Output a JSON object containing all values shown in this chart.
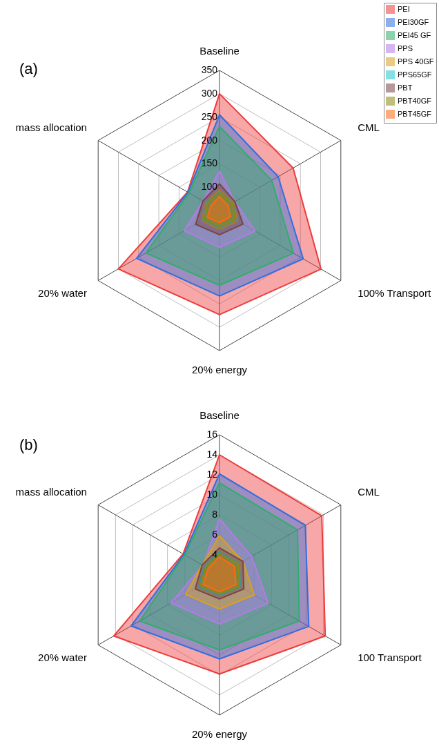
{
  "chart_data": [
    {
      "type": "radar",
      "title": "(a)",
      "categories": [
        "Baseline",
        "CML",
        "100% Transport",
        "20% energy",
        "20% water",
        "mass allocation"
      ],
      "ylim": [
        50,
        350
      ],
      "yticks": [
        100,
        150,
        200,
        250,
        300,
        350
      ],
      "grid": true,
      "legend": "top right",
      "series": [
        {
          "name": "PEI",
          "color": "#ee3b3b",
          "values": [
            300,
            232,
            301,
            273,
            300,
            129
          ]
        },
        {
          "name": "PEI30GF",
          "color": "#2f6fe0",
          "values": [
            255,
            195,
            257,
            233,
            255,
            128
          ]
        },
        {
          "name": "PEI45 GF",
          "color": "#2fae6a",
          "values": [
            230,
            179,
            233,
            210,
            232,
            125
          ]
        },
        {
          "name": "PPS",
          "color": "#b57ae8",
          "values": [
            134,
            88,
            138,
            129,
            137,
            91
          ]
        },
        {
          "name": "PPS 40GF",
          "color": "#d9a21c",
          "values": [
            94,
            85,
            95,
            90,
            94,
            84
          ]
        },
        {
          "name": "PPS65GF",
          "color": "#22c9c9",
          "values": [
            90,
            83,
            91,
            87,
            91,
            82
          ]
        },
        {
          "name": "PBT",
          "color": "#7a4545",
          "values": [
            107,
            88,
            108,
            102,
            109,
            91
          ]
        },
        {
          "name": "PBT40GF",
          "color": "#8b8b10",
          "values": [
            88,
            82,
            89,
            84,
            88,
            80
          ]
        },
        {
          "name": "PBT45GF",
          "color": "#ff6a10",
          "values": [
            80,
            71,
            77,
            76,
            80,
            71
          ]
        }
      ]
    },
    {
      "type": "radar",
      "title": "(b)",
      "categories": [
        "Baseline",
        "CML",
        "100 Transport",
        "20% energy",
        "20% water",
        "mass allocation"
      ],
      "ylim": [
        2,
        16
      ],
      "yticks": [
        4,
        6,
        8,
        10,
        12,
        14,
        16
      ],
      "grid": true,
      "series": [
        {
          "color": "#ee3b3b",
          "values": [
            14,
            13.8,
            14.2,
            11.9,
            14.2,
            6.2
          ]
        },
        {
          "color": "#2f6fe0",
          "values": [
            12.1,
            11.9,
            12.3,
            10.4,
            12.2,
            6.1
          ]
        },
        {
          "color": "#2fae6a",
          "values": [
            11.2,
            11,
            11.2,
            9.5,
            11.2,
            6
          ]
        },
        {
          "color": "#b57ae8",
          "values": [
            7.6,
            5.7,
            7.6,
            6.9,
            7.6,
            3.9
          ]
        },
        {
          "color": "#d9a21c",
          "values": [
            5.9,
            4.7,
            6,
            5.4,
            5.9,
            4
          ]
        },
        {
          "color": "#22c9c9",
          "values": [
            4.3,
            4.3,
            4.4,
            4.1,
            4.4,
            3.8
          ]
        },
        {
          "color": "#7a4545",
          "values": [
            4.7,
            4.7,
            4.8,
            4.4,
            4.8,
            4
          ]
        },
        {
          "color": "#8b8b10",
          "values": [
            4.1,
            4.2,
            4.3,
            3.9,
            4.2,
            3.6
          ]
        },
        {
          "color": "#ff6a10",
          "values": [
            3.8,
            3.7,
            3.9,
            3.7,
            3.9,
            3.3
          ]
        }
      ]
    }
  ]
}
